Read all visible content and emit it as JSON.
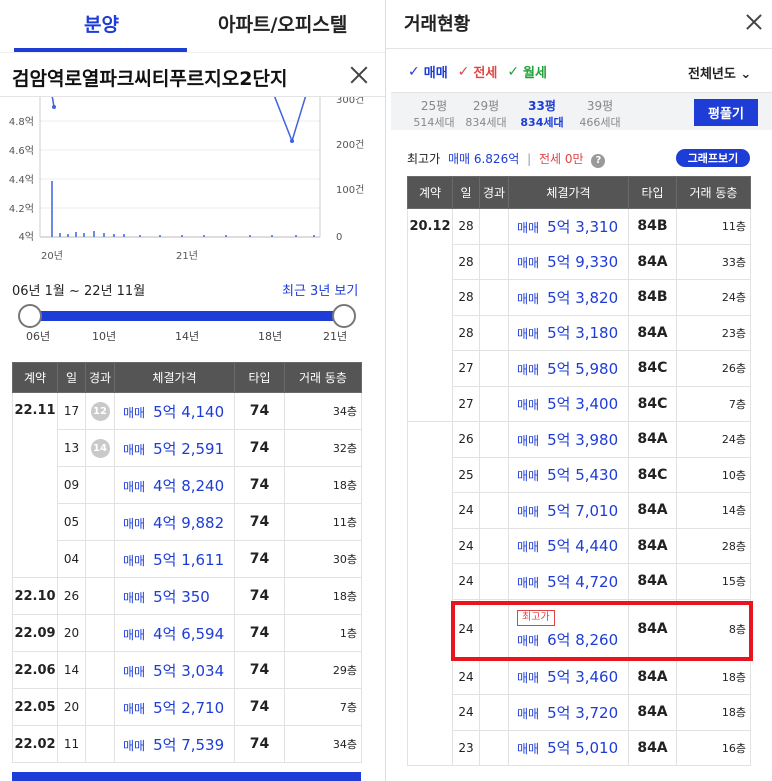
{
  "left": {
    "tabs": [
      "분양",
      "아파트/오피스텔"
    ],
    "complex_title": "검암역로열파크씨티푸르지오2단지",
    "chart": {
      "y_left_ticks": [
        "4.8억",
        "4.6억",
        "4.4억",
        "4.2억",
        "4억"
      ],
      "y_right_ticks": [
        "300건",
        "200건",
        "100건",
        "0"
      ],
      "x_ticks": [
        "20년",
        "21년"
      ]
    },
    "range_label": "06년 1월 ~ 22년 11월",
    "range_link": "최근 3년 보기",
    "slider_ticks": [
      "06년",
      "10년",
      "14년",
      "18년",
      "21년"
    ],
    "table_headers": [
      "계약",
      "일",
      "경과",
      "체결가격",
      "타입",
      "거래 동층"
    ],
    "rows": [
      {
        "date": "22.11",
        "day": "17",
        "lapse": "12",
        "kind": "매매",
        "amount": "5억 4,140",
        "type": "74",
        "floor": "34층"
      },
      {
        "date": "",
        "day": "13",
        "lapse": "14",
        "kind": "매매",
        "amount": "5억 2,591",
        "type": "74",
        "floor": "32층"
      },
      {
        "date": "",
        "day": "09",
        "lapse": "",
        "kind": "매매",
        "amount": "4억 8,240",
        "type": "74",
        "floor": "18층"
      },
      {
        "date": "",
        "day": "05",
        "lapse": "",
        "kind": "매매",
        "amount": "4억 9,882",
        "type": "74",
        "floor": "11층"
      },
      {
        "date": "",
        "day": "04",
        "lapse": "",
        "kind": "매매",
        "amount": "5억 1,611",
        "type": "74",
        "floor": "30층"
      },
      {
        "date": "22.10",
        "day": "26",
        "lapse": "",
        "kind": "매매",
        "amount": "5억 350",
        "type": "74",
        "floor": "18층"
      },
      {
        "date": "22.09",
        "day": "20",
        "lapse": "",
        "kind": "매매",
        "amount": "4억 6,594",
        "type": "74",
        "floor": "1층"
      },
      {
        "date": "22.06",
        "day": "14",
        "lapse": "",
        "kind": "매매",
        "amount": "5억 3,034",
        "type": "74",
        "floor": "29층"
      },
      {
        "date": "22.05",
        "day": "20",
        "lapse": "",
        "kind": "매매",
        "amount": "5억 2,710",
        "type": "74",
        "floor": "7층"
      },
      {
        "date": "22.02",
        "day": "11",
        "lapse": "",
        "kind": "매매",
        "amount": "5억 7,539",
        "type": "74",
        "floor": "34층"
      }
    ]
  },
  "right": {
    "title": "거래현황",
    "filters": [
      {
        "label": "매매",
        "color": "#1e3cd6"
      },
      {
        "label": "전세",
        "color": "#e04444"
      },
      {
        "label": "월세",
        "color": "#22a03a"
      }
    ],
    "year_select": "전체년도",
    "pyeongs": [
      {
        "size": "25평",
        "households": "514세대",
        "active": false
      },
      {
        "size": "29평",
        "households": "834세대",
        "active": false
      },
      {
        "size": "33평",
        "households": "834세대",
        "active": true
      },
      {
        "size": "39평",
        "households": "466세대",
        "active": false
      }
    ],
    "pyeong_btn": "평풀기",
    "max_label": "최고가",
    "max_trade": "매매 6.826억",
    "max_jeonse": "전세 0만",
    "help_icon": "?",
    "graph_btn": "그래프보기",
    "table_headers": [
      "계약",
      "일",
      "경과",
      "체결가격",
      "타입",
      "거래 동층"
    ],
    "max_badge": "최고가",
    "groups": [
      {
        "date": "20.12",
        "rows": [
          {
            "day": "28",
            "kind": "매매",
            "amount": "5억 3,310",
            "type": "84B",
            "floor": "11층"
          },
          {
            "day": "28",
            "kind": "매매",
            "amount": "5억 9,330",
            "type": "84A",
            "floor": "33층"
          },
          {
            "day": "28",
            "kind": "매매",
            "amount": "5억 3,820",
            "type": "84B",
            "floor": "24층"
          },
          {
            "day": "28",
            "kind": "매매",
            "amount": "5억 3,180",
            "type": "84A",
            "floor": "23층"
          },
          {
            "day": "27",
            "kind": "매매",
            "amount": "5억 5,980",
            "type": "84C",
            "floor": "26층"
          },
          {
            "day": "27",
            "kind": "매매",
            "amount": "5억 3,400",
            "type": "84C",
            "floor": "7층"
          }
        ]
      },
      {
        "date": "",
        "rows": [
          {
            "day": "26",
            "kind": "매매",
            "amount": "5억 3,980",
            "type": "84A",
            "floor": "24층"
          },
          {
            "day": "25",
            "kind": "매매",
            "amount": "5억 5,430",
            "type": "84C",
            "floor": "10층"
          },
          {
            "day": "24",
            "kind": "매매",
            "amount": "5억 7,010",
            "type": "84A",
            "floor": "14층"
          },
          {
            "day": "24",
            "kind": "매매",
            "amount": "5억 4,440",
            "type": "84A",
            "floor": "28층"
          },
          {
            "day": "24",
            "kind": "매매",
            "amount": "5억 4,720",
            "type": "84A",
            "floor": "15층"
          },
          {
            "day": "24",
            "kind": "매매",
            "amount": "6억 8,260",
            "type": "84A",
            "floor": "8층",
            "max": true
          },
          {
            "day": "24",
            "kind": "매매",
            "amount": "5억 3,460",
            "type": "84A",
            "floor": "18층"
          },
          {
            "day": "24",
            "kind": "매매",
            "amount": "5억 3,720",
            "type": "84A",
            "floor": "18층"
          },
          {
            "day": "23",
            "kind": "매매",
            "amount": "5억 5,010",
            "type": "84A",
            "floor": "16층"
          }
        ]
      }
    ]
  }
}
